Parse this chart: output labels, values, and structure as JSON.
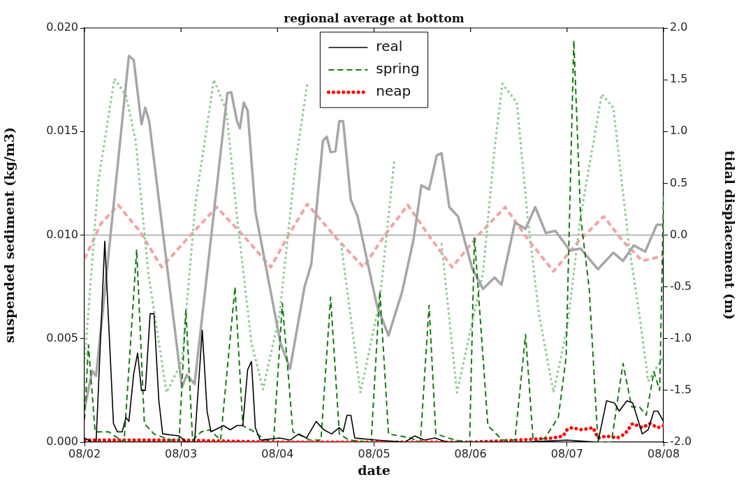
{
  "chart_data": {
    "type": "line",
    "title": "regional average at bottom",
    "xlabel": "date",
    "ylabel": "suspended sediment (kg/m3)",
    "y2label": "tidal displacement (m)",
    "xlim": [
      "--08-02",
      "--08-08"
    ],
    "xticks": [
      {
        "value": "--08-02",
        "label": "08/02"
      },
      {
        "value": "--08-03",
        "label": "08/03"
      },
      {
        "value": "--08-04",
        "label": "08/04"
      },
      {
        "value": "--08-05",
        "label": "08/05"
      },
      {
        "value": "--08-06",
        "label": "08/06"
      },
      {
        "value": "--08-07",
        "label": "08/07"
      },
      {
        "value": "--08-08",
        "label": "08/08"
      }
    ],
    "ylim": [
      0,
      0.02
    ],
    "yticks": [
      {
        "value": 0,
        "label": "0.000"
      },
      {
        "value": 0.005,
        "label": "0.005"
      },
      {
        "value": 0.01,
        "label": "0.010"
      },
      {
        "value": 0.015,
        "label": "0.015"
      },
      {
        "value": 0.02,
        "label": "0.020"
      }
    ],
    "y2lim": [
      -2,
      2
    ],
    "y2ticks": [
      {
        "value": -2,
        "label": "-2.0"
      },
      {
        "value": -1.5,
        "label": "-1.5"
      },
      {
        "value": -1,
        "label": "-1.0"
      },
      {
        "value": -0.5,
        "label": "-0.5"
      },
      {
        "value": 0,
        "label": "0.0"
      },
      {
        "value": 0.5,
        "label": "0.5"
      },
      {
        "value": 1,
        "label": "1.0"
      },
      {
        "value": 1.5,
        "label": "1.5"
      },
      {
        "value": 2,
        "label": "2.0"
      }
    ],
    "grid": false,
    "legend": "top",
    "ref_lines": [
      {
        "axis": "y2",
        "value": 0,
        "color": "#808080"
      }
    ],
    "series": [
      {
        "name": "real",
        "color": "#000000",
        "line_style": "solid",
        "x": [
          "--08-02T00:00",
          "--08-02T01:55",
          "--08-02T02:53",
          "--08-02T05:02",
          "--08-02T07:12",
          "--08-02T08:10",
          "--08-02T09:22",
          "--08-02T10:19",
          "--08-02T11:02",
          "--08-02T12:14",
          "--08-02T13:12",
          "--08-02T14:10",
          "--08-02T15:07",
          "--08-02T16:19",
          "--08-02T17:17",
          "--08-02T18:29",
          "--08-02T19:26",
          "--08-02T23:31",
          "--08-03T01:26",
          "--08-03T03:22",
          "--08-03T05:17",
          "--08-03T06:29",
          "--08-03T07:26",
          "--08-03T10:34",
          "--08-03T12:14",
          "--08-03T13:55",
          "--08-03T15:22",
          "--08-03T16:34",
          "--08-03T17:31",
          "--08-03T18:29",
          "--08-03T19:41",
          "--08-04T00:29",
          "--08-04T03:07",
          "--08-04T05:17",
          "--08-04T07:12",
          "--08-04T09:36",
          "--08-04T11:31",
          "--08-04T13:26",
          "--08-04T15:22",
          "--08-04T16:19",
          "--08-04T17:17",
          "--08-04T18:14",
          "--08-04T19:12",
          "--08-05T00:43",
          "--08-05T07:41",
          "--08-05T10:05",
          "--08-05T12:29",
          "--08-05T15:07",
          "--08-05T18:14",
          "--08-06T13:12",
          "--08-07T00:00",
          "--08-07T07:41",
          "--08-07T09:50",
          "--08-07T11:46",
          "--08-07T12:58",
          "--08-07T14:53",
          "--08-07T16:19",
          "--08-07T18:43",
          "--08-07T20:10",
          "--08-07T21:36",
          "--08-07T22:34",
          "--08-08T00:00"
        ],
        "values": [
          0.0002,
          0.0,
          0.0,
          0.0097,
          0.0009,
          0.0005,
          0.0005,
          0.0012,
          0.001,
          0.0033,
          0.0043,
          0.0025,
          0.0025,
          0.0062,
          0.0062,
          0.002,
          0.0004,
          0.0003,
          0.0,
          0.0,
          0.0054,
          0.0015,
          0.0005,
          0.0008,
          0.0006,
          0.0008,
          0.0008,
          0.0035,
          0.0039,
          0.0007,
          0.0001,
          0.0002,
          0.0001,
          0.0004,
          0.0002,
          0.001,
          0.0006,
          0.0004,
          0.0007,
          0.0005,
          0.0013,
          0.0013,
          0.0002,
          0.0001,
          0.0,
          0.0003,
          0.0001,
          0.0002,
          0.0,
          0.0,
          0.0001,
          0.0,
          0.002,
          0.0019,
          0.0015,
          0.002,
          0.0019,
          0.0004,
          0.0006,
          0.0015,
          0.0015,
          0.001
        ]
      },
      {
        "name": "spring",
        "color": "#137a13",
        "line_style": "dashed",
        "x": [
          "--08-02T00:00",
          "--08-02T00:58",
          "--08-02T02:38",
          "--08-02T06:00",
          "--08-02T09:50",
          "--08-02T12:58",
          "--08-02T14:53",
          "--08-02T17:17",
          "--08-02T21:22",
          "--08-02T23:31",
          "--08-03T01:12",
          "--08-03T02:53",
          "--08-03T05:02",
          "--08-03T07:12",
          "--08-03T09:50",
          "--08-03T13:26",
          "--08-03T15:22",
          "--08-03T18:14",
          "--08-03T20:53",
          "--08-03T23:02",
          "--08-04T01:12",
          "--08-04T03:50",
          "--08-04T08:10",
          "--08-04T10:48",
          "--08-04T13:12",
          "--08-04T15:22",
          "--08-04T17:46",
          "--08-04T23:17",
          "--08-05T01:26",
          "--08-05T03:36",
          "--08-05T09:07",
          "--08-05T11:31",
          "--08-05T13:41",
          "--08-05T15:22",
          "--08-05T20:10",
          "--08-05T23:46",
          "--08-06T00:58",
          "--08-06T04:19",
          "--08-06T07:55",
          "--08-06T11:02",
          "--08-06T13:41",
          "--08-06T15:36",
          "--08-06T18:29",
          "--08-06T21:50",
          "--08-06T23:46",
          "--08-07T01:41",
          "--08-07T03:22",
          "--08-07T05:31",
          "--08-07T07:41",
          "--08-07T11:02",
          "--08-07T13:55",
          "--08-07T16:05",
          "--08-07T18:00",
          "--08-07T19:41",
          "--08-07T21:36",
          "--08-07T23:02",
          "--08-08T00:00"
        ],
        "values": [
          0.0011,
          0.0047,
          0.0005,
          0.0005,
          0.0,
          0.0093,
          0.0009,
          0.0004,
          0.0001,
          0.0001,
          0.0064,
          0.0001,
          0.0005,
          0.0006,
          0.0001,
          0.0075,
          0.0008,
          0.0005,
          0.0001,
          0.0001,
          0.0067,
          0.0005,
          0.0001,
          0.0001,
          0.007,
          0.0004,
          0.0001,
          0.0,
          0.0073,
          0.0004,
          0.0002,
          0.0,
          0.0066,
          0.0004,
          0.0001,
          0.0,
          0.0099,
          0.0008,
          0.0001,
          0.0001,
          0.0052,
          0.0,
          0.0002,
          0.0012,
          0.0041,
          0.0194,
          0.0109,
          0.0074,
          0.0,
          0.0,
          0.0038,
          0.0017,
          0.0017,
          0.0013,
          0.0034,
          0.0025,
          0.012
        ]
      },
      {
        "name": "neap",
        "color": "#ff0000",
        "line_style": "dotted",
        "x": [
          "--08-02T00:00",
          "--08-02T12:00",
          "--08-03T00:00",
          "--08-04T00:00",
          "--08-05T00:00",
          "--08-06T00:00",
          "--08-06T12:00",
          "--08-06T20:24",
          "--08-06T23:02",
          "--08-07T00:00",
          "--08-07T01:12",
          "--08-07T03:36",
          "--08-07T06:29",
          "--08-07T07:41",
          "--08-07T09:50",
          "--08-07T12:29",
          "--08-07T14:24",
          "--08-07T16:19",
          "--08-07T18:43",
          "--08-07T20:38",
          "--08-07T22:34",
          "--08-08T00:00"
        ],
        "values": [
          0.0001,
          0.0001,
          0.0001,
          0.0,
          0.0,
          0.0,
          0.0001,
          0.0002,
          0.0003,
          0.0006,
          0.0007,
          0.0006,
          0.0007,
          0.0002,
          0.0003,
          0.0002,
          0.0004,
          0.0009,
          0.0007,
          0.0009,
          0.0007,
          0.0008
        ]
      },
      {
        "color": "#a6a6a6",
        "line_style": "solid",
        "axis": "y2",
        "x": [
          "--08-02T00:00",
          "--08-02T01:55",
          "--08-02T02:53",
          "--08-02T11:02",
          "--08-02T12:14",
          "--08-02T14:10",
          "--08-02T15:07",
          "--08-02T16:05",
          "--08-03T00:14",
          "--08-03T01:26",
          "--08-03T03:22",
          "--08-03T11:31",
          "--08-03T12:29",
          "--08-03T13:55",
          "--08-03T14:38",
          "--08-03T15:36",
          "--08-03T16:34",
          "--08-03T18:29",
          "--08-04T00:43",
          "--08-04T03:07",
          "--08-04T06:43",
          "--08-04T08:24",
          "--08-04T11:17",
          "--08-04T12:14",
          "--08-04T13:12",
          "--08-04T14:24",
          "--08-04T15:22",
          "--08-04T16:19",
          "--08-04T18:14",
          "--08-04T19:55",
          "--08-05T00:43",
          "--08-05T03:36",
          "--08-05T06:58",
          "--08-05T09:50",
          "--08-05T11:46",
          "--08-05T13:41",
          "--08-05T15:36",
          "--08-05T16:48",
          "--08-05T18:43",
          "--08-05T20:53",
          "--08-06T00:29",
          "--08-06T03:07",
          "--08-06T06:00",
          "--08-06T07:41",
          "--08-06T11:02",
          "--08-06T13:41",
          "--08-06T16:05",
          "--08-06T18:43",
          "--08-06T21:07",
          "--08-07T00:43",
          "--08-07T03:22",
          "--08-07T07:41",
          "--08-07T11:31",
          "--08-07T13:55",
          "--08-07T16:34",
          "--08-07T19:26",
          "--08-07T22:19",
          "--08-08T00:00"
        ],
        "values": [
          -1.68,
          -1.31,
          -1.36,
          1.73,
          1.69,
          1.07,
          1.23,
          1.1,
          -1.47,
          -1.35,
          -1.44,
          1.37,
          1.38,
          1.1,
          1.03,
          1.28,
          1.2,
          0.23,
          -1.04,
          -1.29,
          -0.5,
          -0.28,
          0.91,
          0.95,
          0.8,
          0.81,
          1.1,
          1.1,
          0.34,
          0.18,
          -0.68,
          -0.97,
          -0.55,
          -0.04,
          0.48,
          0.44,
          0.77,
          0.79,
          0.27,
          0.18,
          -0.33,
          -0.52,
          -0.41,
          -0.48,
          0.12,
          0.06,
          0.27,
          0.02,
          0.04,
          -0.15,
          -0.13,
          -0.33,
          -0.17,
          -0.25,
          -0.1,
          -0.16,
          0.1,
          0.1
        ]
      },
      {
        "color": "#93cc93",
        "line_style": "dotted",
        "axis": "y2",
        "x": [
          "--08-02T00:00",
          "--08-02T03:22",
          "--08-02T07:26",
          "--08-02T10:19",
          "--08-02T12:43",
          "--08-02T15:50",
          "--08-02T20:24",
          "--08-03T00:14",
          "--08-03T03:36",
          "--08-03T08:10",
          "--08-03T11:17",
          "--08-03T13:55",
          "--08-03T17:31",
          "--08-03T20:24",
          "--08-04T00:29",
          "--08-04T04:34",
          "--08-04T07:26",
          "--08-04T11:31",
          "--08-04T15:50",
          "--08-04T20:38",
          "--08-05T01:26",
          "--08-05T05:02",
          "--08-05T07:41",
          "--08-05T11:31",
          "--08-05T16:48",
          "--08-05T20:38",
          "--08-06T03:07",
          "--08-06T06:00",
          "--08-06T07:55",
          "--08-06T11:31",
          "--08-06T14:10",
          "--08-06T17:02",
          "--08-06T20:38",
          "--08-07T00:00",
          "--08-07T03:22",
          "--08-07T08:38",
          "--08-07T11:31",
          "--08-07T15:22",
          "--08-07T18:00",
          "--08-07T20:10",
          "--08-08T00:00"
        ],
        "values": [
          -1.24,
          0.5,
          1.51,
          1.35,
          0.91,
          -0.36,
          -1.52,
          -1.22,
          0.31,
          1.5,
          1.2,
          0.18,
          -1.04,
          -1.49,
          -0.77,
          0.72,
          1.47,
          null,
          -0.09,
          -1.52,
          -0.63,
          0.72,
          null,
          null,
          -0.09,
          -1.52,
          -0.36,
          0.85,
          1.46,
          1.28,
          0.18,
          -0.77,
          -1.52,
          -0.9,
          0.18,
          1.36,
          1.23,
          -0.09,
          -0.77,
          -1.41,
          -1.17
        ]
      },
      {
        "color": "#f5a3a3",
        "line_style": "dashed",
        "axis": "y2",
        "x": [
          "--08-02T00:00",
          "--08-02T04:05",
          "--08-02T08:24",
          "--08-02T13:41",
          "--08-02T19:12",
          "--08-03T01:55",
          "--08-03T08:53",
          "--08-03T15:50",
          "--08-03T22:19",
          "--08-04T02:53",
          "--08-04T07:26",
          "--08-04T14:24",
          "--08-04T21:22",
          "--08-05T02:53",
          "--08-05T08:24",
          "--08-05T13:55",
          "--08-05T19:26",
          "--08-06T02:10",
          "--08-06T08:38",
          "--08-06T14:38",
          "--08-06T20:38",
          "--08-07T02:53",
          "--08-07T09:07",
          "--08-07T13:55",
          "--08-07T18:43",
          "--08-08T00:00"
        ],
        "values": [
          -0.23,
          0.11,
          0.29,
          0.04,
          -0.31,
          -0.02,
          0.27,
          -0.02,
          -0.31,
          0.01,
          0.3,
          -0.02,
          -0.31,
          0.01,
          0.29,
          -0.02,
          -0.31,
          0.01,
          0.27,
          -0.06,
          -0.35,
          -0.06,
          0.18,
          -0.06,
          -0.25,
          -0.2
        ]
      }
    ]
  }
}
